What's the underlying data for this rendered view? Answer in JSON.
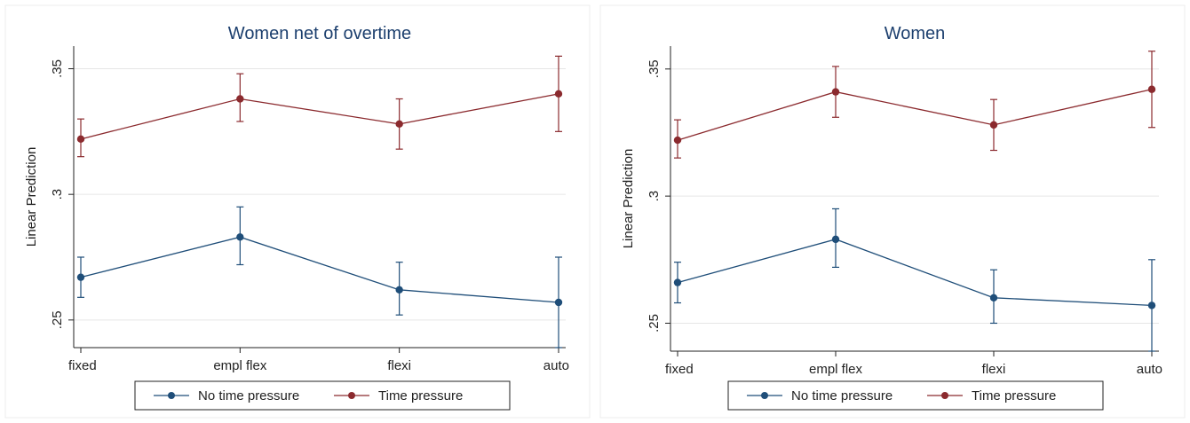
{
  "colors": {
    "no_pressure": "#1f4e79",
    "pressure": "#8b2a2e",
    "grid": "#e6e6e6",
    "axis": "#222222",
    "title": "#1c3f6e"
  },
  "chart_data": [
    {
      "type": "line",
      "title": "Women net of overtime",
      "xlabel": "",
      "ylabel": "Linear Prediction",
      "categories": [
        "fixed",
        "empl flex",
        "flexi",
        "auto"
      ],
      "ylim": [
        0.239,
        0.359
      ],
      "yticks": [
        0.25,
        0.3,
        0.35
      ],
      "ytick_labels": [
        ".25",
        ".3",
        ".35"
      ],
      "grid": true,
      "legend_position": "bottom",
      "series": [
        {
          "name": "No time pressure",
          "values": [
            0.267,
            0.283,
            0.262,
            0.257
          ],
          "ci_low": [
            0.259,
            0.272,
            0.252,
            0.239
          ],
          "ci_high": [
            0.275,
            0.295,
            0.273,
            0.275
          ]
        },
        {
          "name": "Time pressure",
          "values": [
            0.322,
            0.338,
            0.328,
            0.34
          ],
          "ci_low": [
            0.315,
            0.329,
            0.318,
            0.325
          ],
          "ci_high": [
            0.33,
            0.348,
            0.338,
            0.355
          ]
        }
      ]
    },
    {
      "type": "line",
      "title": "Women",
      "xlabel": "",
      "ylabel": "Linear Prediction",
      "categories": [
        "fixed",
        "empl flex",
        "flexi",
        "auto"
      ],
      "ylim": [
        0.239,
        0.359
      ],
      "yticks": [
        0.25,
        0.3,
        0.35
      ],
      "ytick_labels": [
        ".25",
        ".3",
        ".35"
      ],
      "grid": true,
      "legend_position": "bottom",
      "series": [
        {
          "name": "No time pressure",
          "values": [
            0.266,
            0.283,
            0.26,
            0.257
          ],
          "ci_low": [
            0.258,
            0.272,
            0.25,
            0.239
          ],
          "ci_high": [
            0.274,
            0.295,
            0.271,
            0.275
          ]
        },
        {
          "name": "Time pressure",
          "values": [
            0.322,
            0.341,
            0.328,
            0.342
          ],
          "ci_low": [
            0.315,
            0.331,
            0.318,
            0.327
          ],
          "ci_high": [
            0.33,
            0.351,
            0.338,
            0.357
          ]
        }
      ]
    }
  ]
}
